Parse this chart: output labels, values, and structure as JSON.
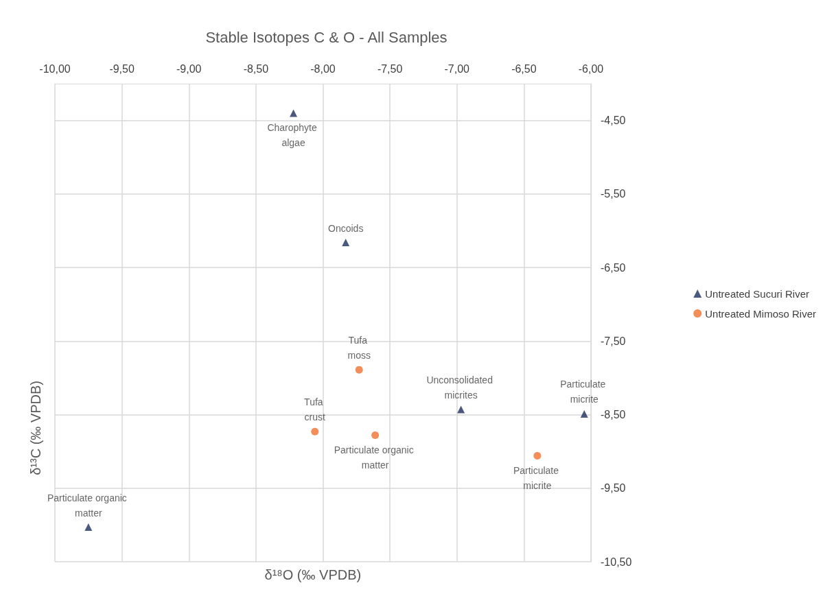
{
  "chart_data": {
    "type": "scatter",
    "title": "Stable Isotopes C & O - All Samples",
    "xlabel": "δ¹⁸O (‰ VPDB)",
    "ylabel": "δ¹³C (‰ VPDB)",
    "xlim": [
      -10,
      -6
    ],
    "xticks": [
      {
        "value": -10,
        "label": "-10,00"
      },
      {
        "value": -9.5,
        "label": "-9,50"
      },
      {
        "value": -9,
        "label": "-9,00"
      },
      {
        "value": -8.5,
        "label": "-8,50"
      },
      {
        "value": -8,
        "label": "-8,00"
      },
      {
        "value": -7.5,
        "label": "-7,50"
      },
      {
        "value": -7,
        "label": "-7,00"
      },
      {
        "value": -6.5,
        "label": "-6,50"
      },
      {
        "value": -6,
        "label": "-6,00"
      }
    ],
    "ylim": [
      -10.5,
      -4
    ],
    "yticks": [
      {
        "value": -10.5,
        "label": "-10,50"
      },
      {
        "value": -9.5,
        "label": "-9,50"
      },
      {
        "value": -8.5,
        "label": "-8,50"
      },
      {
        "value": -7.5,
        "label": "-7,50"
      },
      {
        "value": -6.5,
        "label": "-6,50"
      },
      {
        "value": -5.5,
        "label": "-5,50"
      },
      {
        "value": -4.5,
        "label": "-4,50"
      }
    ],
    "grid": true,
    "legend": "right",
    "series": [
      {
        "name": "Untreated Sucuri River",
        "color": "#1f2f5e",
        "marker": "triangle",
        "x": [
          -8.22,
          -7.83,
          -6.97,
          -6.05,
          -9.75
        ],
        "values": [
          -4.4,
          -6.16,
          -8.43,
          -8.49,
          -10.03
        ]
      },
      {
        "name": "Untreated Mimoso River",
        "color": "#f07030",
        "marker": "circle",
        "x": [
          -7.73,
          -8.06,
          -7.61,
          -6.4
        ],
        "values": [
          -7.89,
          -8.73,
          -8.78,
          -9.06
        ]
      }
    ],
    "annotations": [
      {
        "text": "Charophyte algae",
        "x": -8.22,
        "y": -4.4
      },
      {
        "text": "Oncoids",
        "x": -7.83,
        "y": -6.16
      },
      {
        "text": "Unconsolidated micrites",
        "x": -6.97,
        "y": -8.43
      },
      {
        "text": "Particulate micrite",
        "x": -6.05,
        "y": -8.49
      },
      {
        "text": "Particulate organic matter",
        "x": -9.75,
        "y": -10.03
      },
      {
        "text": "Tufa moss",
        "x": -7.73,
        "y": -7.89
      },
      {
        "text": "Tufa crust",
        "x": -8.06,
        "y": -8.73
      },
      {
        "text": "Particulate organic matter",
        "x": -7.61,
        "y": -8.78
      },
      {
        "text": "Particulate micrite",
        "x": -6.4,
        "y": -9.06
      }
    ]
  }
}
